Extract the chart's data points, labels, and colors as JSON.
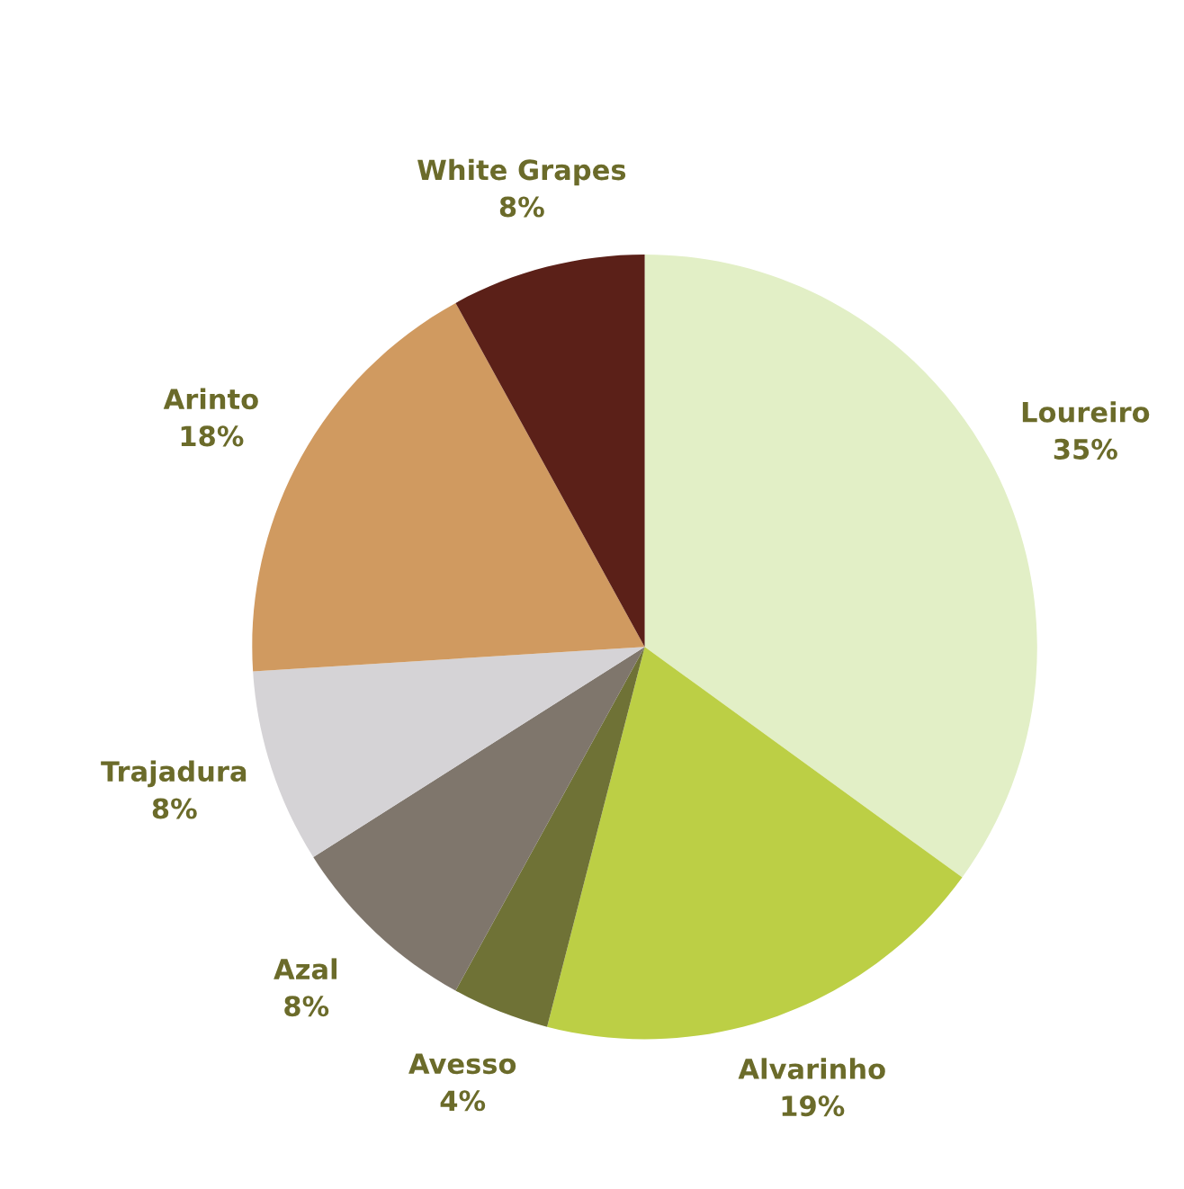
{
  "chart_data": {
    "type": "pie",
    "categories": [
      "Loureiro",
      "Alvarinho",
      "Avesso",
      "Azal",
      "Trajadura",
      "Arinto",
      "White Grapes"
    ],
    "values": [
      35,
      19,
      4,
      8,
      8,
      18,
      8
    ],
    "value_labels": [
      "35%",
      "19%",
      "4%",
      "8%",
      "8%",
      "18%",
      "8%"
    ],
    "colors": [
      "#e2efc6",
      "#bccf45",
      "#6f7236",
      "#7f766c",
      "#d5d3d6",
      "#d09a60",
      "#5b2018"
    ],
    "legend": false
  }
}
